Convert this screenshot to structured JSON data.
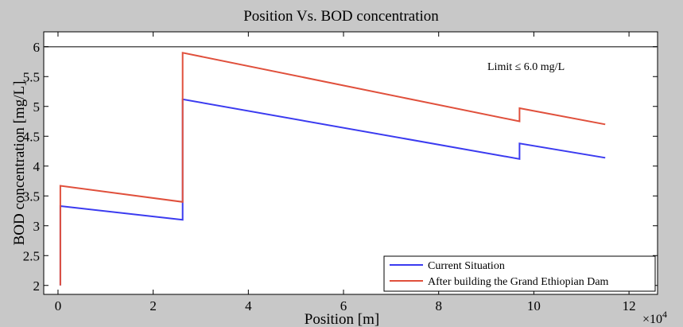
{
  "chart_data": {
    "type": "line",
    "title": "Position Vs. BOD concentration",
    "xlabel": "Position [m]",
    "ylabel": "BOD concentration [mg/L]",
    "x_multiplier_label": "×10",
    "x_multiplier_exponent": "4",
    "xlim": [
      -0.3,
      12.6
    ],
    "ylim": [
      1.85,
      6.25
    ],
    "x_ticks": [
      0,
      2,
      4,
      6,
      8,
      10,
      12
    ],
    "x_tick_labels": [
      "0",
      "2",
      "4",
      "6",
      "8",
      "10",
      "12"
    ],
    "y_ticks": [
      2,
      2.5,
      3,
      3.5,
      4,
      4.5,
      5,
      5.5,
      6
    ],
    "y_tick_labels": [
      "2",
      "2.5",
      "3",
      "3.5",
      "4",
      "4.5",
      "5",
      "5.5",
      "6"
    ],
    "grid": false,
    "legend_position": "bottom-right",
    "annotation": "Limit ≤ 6.0 mg/L",
    "limit_line": {
      "y": 6.0,
      "color": "#555555"
    },
    "series": [
      {
        "name": "Current Situation",
        "color": "#3b3bf0",
        "x": [
          0.05,
          0.05,
          2.62,
          2.62,
          9.7,
          9.7,
          11.5
        ],
        "y": [
          2.0,
          3.33,
          3.1,
          5.12,
          4.12,
          4.38,
          4.14
        ]
      },
      {
        "name": "After building the Grand Ethiopian Dam",
        "color": "#e0503c",
        "x": [
          0.05,
          0.05,
          2.62,
          2.62,
          9.7,
          9.7,
          11.5
        ],
        "y": [
          2.0,
          3.67,
          3.4,
          5.9,
          4.75,
          4.97,
          4.7
        ]
      }
    ]
  }
}
